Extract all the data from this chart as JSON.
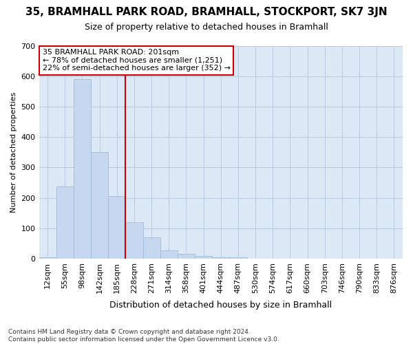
{
  "title": "35, BRAMHALL PARK ROAD, BRAMHALL, STOCKPORT, SK7 3JN",
  "subtitle": "Size of property relative to detached houses in Bramhall",
  "xlabel": "Distribution of detached houses by size in Bramhall",
  "ylabel": "Number of detached properties",
  "bar_labels": [
    "12sqm",
    "55sqm",
    "98sqm",
    "142sqm",
    "185sqm",
    "228sqm",
    "271sqm",
    "314sqm",
    "358sqm",
    "401sqm",
    "444sqm",
    "487sqm",
    "530sqm",
    "574sqm",
    "617sqm",
    "660sqm",
    "703sqm",
    "746sqm",
    "790sqm",
    "833sqm",
    "876sqm"
  ],
  "bar_heights": [
    5,
    237,
    590,
    350,
    205,
    120,
    70,
    28,
    15,
    8,
    5,
    5,
    0,
    0,
    0,
    0,
    0,
    0,
    0,
    0,
    0
  ],
  "bar_color": "#c5d8ef",
  "bar_edge_color": "#a0bcda",
  "plot_bg_color": "#dce8f5",
  "fig_bg_color": "#ffffff",
  "vline_x": 4.5,
  "vline_color": "#cc0000",
  "annotation_text": "35 BRAMHALL PARK ROAD: 201sqm\n← 78% of detached houses are smaller (1,251)\n22% of semi-detached houses are larger (352) →",
  "annotation_box_facecolor": "#ffffff",
  "annotation_box_edgecolor": "#cc0000",
  "ylim": [
    0,
    700
  ],
  "yticks": [
    0,
    100,
    200,
    300,
    400,
    500,
    600,
    700
  ],
  "footnote": "Contains HM Land Registry data © Crown copyright and database right 2024.\nContains public sector information licensed under the Open Government Licence v3.0."
}
